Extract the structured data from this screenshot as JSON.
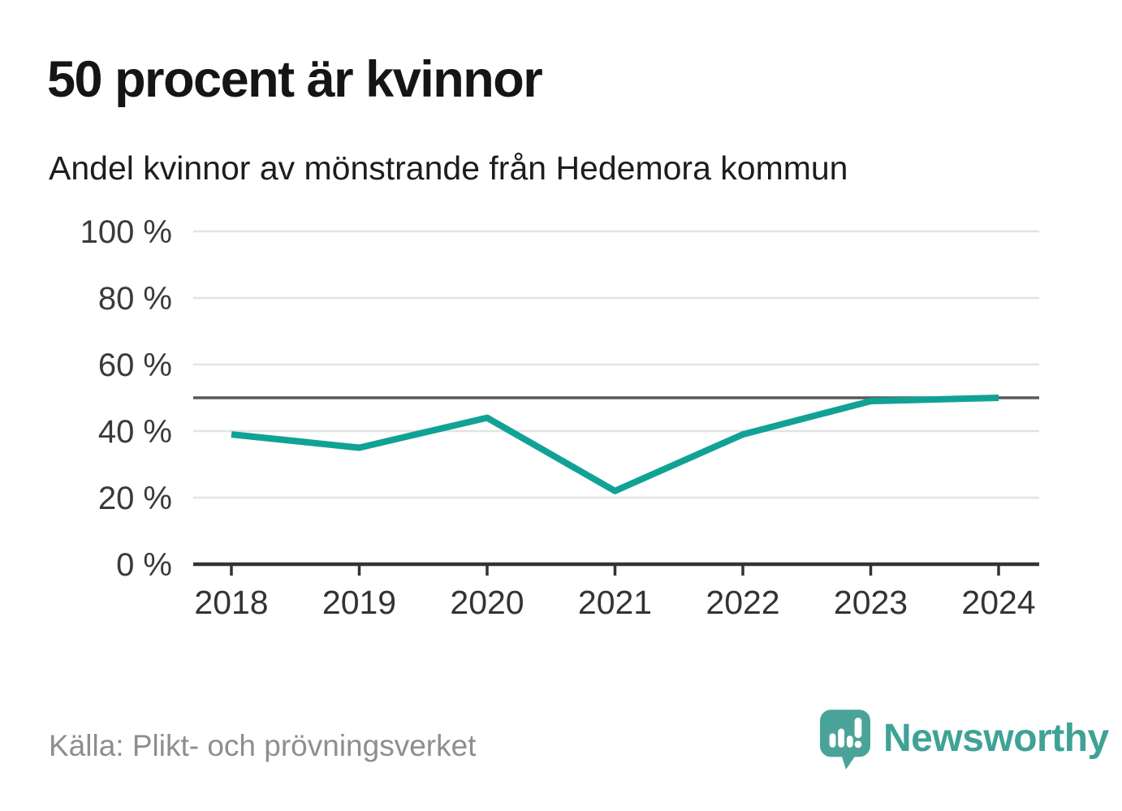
{
  "header": {
    "title": "50 procent är kvinnor",
    "subtitle": "Andel kvinnor av mönstrande från Hedemora kommun"
  },
  "footer": {
    "source": "Källa: Plikt- och prövningsverket",
    "brand": "Newsworthy"
  },
  "colors": {
    "line": "#11a296",
    "grid": "#e3e3e3",
    "reference_line": "#595959",
    "axis": "#333333",
    "ytick_text": "#3a3a3a",
    "xtick_text": "#333333",
    "title_text": "#151515",
    "source_text": "#8e8e8e",
    "brand_teal": "#4aa399"
  },
  "chart_data": {
    "type": "line",
    "title": "50 procent är kvinnor",
    "subtitle": "Andel kvinnor av mönstrande från Hedemora kommun",
    "x": [
      2018,
      2019,
      2020,
      2021,
      2022,
      2023,
      2024
    ],
    "xtick_labels": [
      "2018",
      "2019",
      "2020",
      "2021",
      "2022",
      "2023",
      "2024"
    ],
    "series": [
      {
        "name": "Andel kvinnor av mönstrande",
        "values": [
          39,
          35,
          44,
          22,
          39,
          49,
          50
        ]
      }
    ],
    "unit": "%",
    "ylim": [
      0,
      100
    ],
    "yticks": [
      0,
      20,
      40,
      60,
      80,
      100
    ],
    "ytick_labels": [
      "0 %",
      "20 %",
      "40 %",
      "60 %",
      "80 %",
      "100 %"
    ],
    "reference_line": 50,
    "grid": "horizontal",
    "legend": "none"
  }
}
